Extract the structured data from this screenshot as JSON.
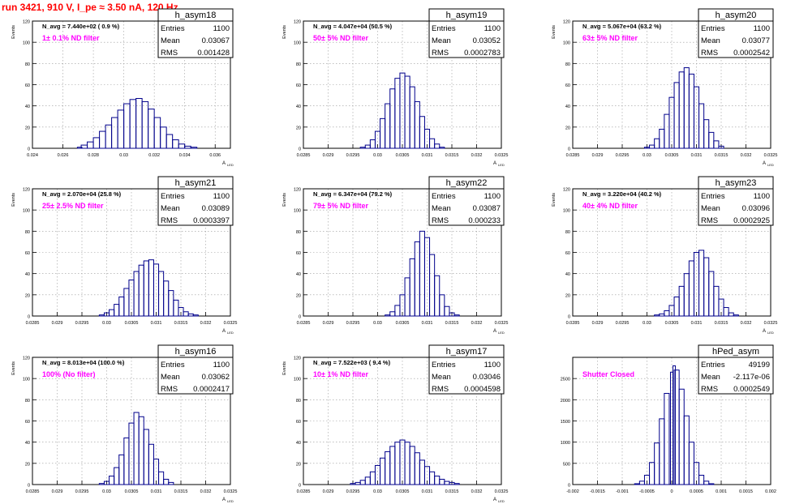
{
  "page": {
    "title": "run 3421,   910 V, I_pe ≈ 3.50 nA, 120 Hz"
  },
  "chart_data": [
    {
      "type": "histogram",
      "name": "h_asym18",
      "navg": "N_avg = 7.440e+02 ( 0.9 %)",
      "filter": "1± 0.1% ND filter",
      "stats": [
        [
          "Entries",
          "1100"
        ],
        [
          "Mean",
          "0.03067"
        ],
        [
          "RMS",
          "0.001428"
        ]
      ],
      "xlabel": "A",
      "xlabel_sub": "LED",
      "ylabel": "Events",
      "xlim": [
        0.024,
        0.037
      ],
      "ylim": [
        0,
        120
      ],
      "xticks": [
        0.024,
        0.026,
        0.028,
        0.03,
        0.032,
        0.034,
        0.036
      ],
      "xtick_labels": [
        "0.024",
        "0.026",
        "0.028",
        "0.03",
        "0.032",
        "0.034",
        "0.036"
      ],
      "yticks": [
        0,
        20,
        40,
        60,
        80,
        100,
        120
      ],
      "values": [
        [
          0.0271,
          1
        ],
        [
          0.0274,
          3
        ],
        [
          0.0278,
          6
        ],
        [
          0.0282,
          10
        ],
        [
          0.0286,
          16
        ],
        [
          0.029,
          22
        ],
        [
          0.0294,
          29
        ],
        [
          0.0298,
          36
        ],
        [
          0.0302,
          42
        ],
        [
          0.0306,
          46
        ],
        [
          0.031,
          47
        ],
        [
          0.0314,
          44
        ],
        [
          0.0318,
          37
        ],
        [
          0.0322,
          29
        ],
        [
          0.0326,
          20
        ],
        [
          0.033,
          13
        ],
        [
          0.0334,
          8
        ],
        [
          0.0338,
          4
        ],
        [
          0.0342,
          2
        ],
        [
          0.0346,
          1
        ]
      ]
    },
    {
      "type": "histogram",
      "name": "h_asym19",
      "navg": "N_avg = 4.047e+04 (50.5 %)",
      "filter": "50± 5% ND filter",
      "stats": [
        [
          "Entries",
          "1100"
        ],
        [
          "Mean",
          "0.03052"
        ],
        [
          "RMS",
          "0.0002783"
        ]
      ],
      "xlabel": "A",
      "xlabel_sub": "LED",
      "ylabel": "Events",
      "xlim": [
        0.0285,
        0.0325
      ],
      "ylim": [
        0,
        120
      ],
      "xticks": [
        0.0285,
        0.029,
        0.0295,
        0.03,
        0.0305,
        0.031,
        0.0315,
        0.032,
        0.0325
      ],
      "xtick_labels": [
        "0.0285",
        "0.029",
        "0.0295",
        "0.03",
        "0.0305",
        "0.031",
        "0.0315",
        "0.032",
        "0.0325"
      ],
      "yticks": [
        0,
        20,
        40,
        60,
        80,
        100,
        120
      ],
      "values": [
        [
          0.0297,
          1
        ],
        [
          0.0298,
          3
        ],
        [
          0.0299,
          8
        ],
        [
          0.03,
          16
        ],
        [
          0.0301,
          28
        ],
        [
          0.0302,
          42
        ],
        [
          0.0303,
          56
        ],
        [
          0.0304,
          66
        ],
        [
          0.0305,
          71
        ],
        [
          0.0306,
          68
        ],
        [
          0.0307,
          58
        ],
        [
          0.0308,
          44
        ],
        [
          0.0309,
          30
        ],
        [
          0.031,
          18
        ],
        [
          0.0311,
          9
        ],
        [
          0.0312,
          4
        ],
        [
          0.0313,
          1
        ]
      ]
    },
    {
      "type": "histogram",
      "name": "h_asym20",
      "navg": "N_avg = 5.067e+04 (63.2 %)",
      "filter": "63± 5% ND filter",
      "stats": [
        [
          "Entries",
          "1100"
        ],
        [
          "Mean",
          "0.03077"
        ],
        [
          "RMS",
          "0.0002542"
        ]
      ],
      "xlabel": "A",
      "xlabel_sub": "LED",
      "ylabel": "Events",
      "xlim": [
        0.0285,
        0.0325
      ],
      "ylim": [
        0,
        120
      ],
      "xticks": [
        0.0285,
        0.029,
        0.0295,
        0.03,
        0.0305,
        0.031,
        0.0315,
        0.032,
        0.0325
      ],
      "xtick_labels": [
        "0.0285",
        "0.029",
        "0.0295",
        "0.03",
        "0.0305",
        "0.031",
        "0.0315",
        "0.032",
        "0.0325"
      ],
      "yticks": [
        0,
        20,
        40,
        60,
        80,
        100,
        120
      ],
      "values": [
        [
          0.03,
          1
        ],
        [
          0.0301,
          3
        ],
        [
          0.0302,
          9
        ],
        [
          0.0303,
          18
        ],
        [
          0.0304,
          32
        ],
        [
          0.0305,
          48
        ],
        [
          0.0306,
          62
        ],
        [
          0.0307,
          72
        ],
        [
          0.0308,
          76
        ],
        [
          0.0309,
          70
        ],
        [
          0.031,
          58
        ],
        [
          0.0311,
          42
        ],
        [
          0.0312,
          27
        ],
        [
          0.0313,
          15
        ],
        [
          0.0314,
          7
        ],
        [
          0.0315,
          2
        ]
      ]
    },
    {
      "type": "histogram",
      "name": "h_asym21",
      "navg": "N_avg = 2.070e+04 (25.8 %)",
      "filter": "25± 2.5% ND filter",
      "stats": [
        [
          "Entries",
          "1100"
        ],
        [
          "Mean",
          "0.03089"
        ],
        [
          "RMS",
          "0.0003397"
        ]
      ],
      "xlabel": "A",
      "xlabel_sub": "LED",
      "ylabel": "Events",
      "xlim": [
        0.0285,
        0.0325
      ],
      "ylim": [
        0,
        120
      ],
      "xticks": [
        0.0285,
        0.029,
        0.0295,
        0.03,
        0.0305,
        0.031,
        0.0315,
        0.032,
        0.0325
      ],
      "xtick_labels": [
        "0.0285",
        "0.029",
        "0.0295",
        "0.03",
        "0.0305",
        "0.031",
        "0.0315",
        "0.032",
        "0.0325"
      ],
      "yticks": [
        0,
        20,
        40,
        60,
        80,
        100,
        120
      ],
      "values": [
        [
          0.0299,
          1
        ],
        [
          0.03,
          3
        ],
        [
          0.0301,
          6
        ],
        [
          0.0302,
          11
        ],
        [
          0.0303,
          18
        ],
        [
          0.0304,
          26
        ],
        [
          0.0305,
          34
        ],
        [
          0.0306,
          42
        ],
        [
          0.0307,
          48
        ],
        [
          0.0308,
          52
        ],
        [
          0.0309,
          53
        ],
        [
          0.031,
          49
        ],
        [
          0.0311,
          42
        ],
        [
          0.0312,
          33
        ],
        [
          0.0313,
          24
        ],
        [
          0.0314,
          15
        ],
        [
          0.0315,
          8
        ],
        [
          0.0316,
          4
        ],
        [
          0.0317,
          2
        ],
        [
          0.0318,
          1
        ]
      ]
    },
    {
      "type": "histogram",
      "name": "h_asym22",
      "navg": "N_avg = 6.347e+04 (79.2 %)",
      "filter": "79± 5% ND filter",
      "stats": [
        [
          "Entries",
          "1100"
        ],
        [
          "Mean",
          "0.03087"
        ],
        [
          "RMS",
          "0.000233"
        ]
      ],
      "xlabel": "A",
      "xlabel_sub": "LED",
      "ylabel": "Events",
      "xlim": [
        0.0285,
        0.0325
      ],
      "ylim": [
        0,
        120
      ],
      "xticks": [
        0.0285,
        0.029,
        0.0295,
        0.03,
        0.0305,
        0.031,
        0.0315,
        0.032,
        0.0325
      ],
      "xtick_labels": [
        "0.0285",
        "0.029",
        "0.0295",
        "0.03",
        "0.0305",
        "0.031",
        "0.0315",
        "0.032",
        "0.0325"
      ],
      "yticks": [
        0,
        20,
        40,
        60,
        80,
        100,
        120
      ],
      "values": [
        [
          0.0302,
          1
        ],
        [
          0.0303,
          4
        ],
        [
          0.0304,
          10
        ],
        [
          0.0305,
          20
        ],
        [
          0.0306,
          36
        ],
        [
          0.0307,
          54
        ],
        [
          0.0308,
          70
        ],
        [
          0.0309,
          80
        ],
        [
          0.031,
          74
        ],
        [
          0.0311,
          58
        ],
        [
          0.0312,
          38
        ],
        [
          0.0313,
          20
        ],
        [
          0.0314,
          9
        ],
        [
          0.0315,
          3
        ],
        [
          0.0316,
          1
        ]
      ]
    },
    {
      "type": "histogram",
      "name": "h_asym23",
      "navg": "N_avg = 3.220e+04 (40.2 %)",
      "filter": "40± 4% ND filter",
      "stats": [
        [
          "Entries",
          "1100"
        ],
        [
          "Mean",
          "0.03096"
        ],
        [
          "RMS",
          "0.0002925"
        ]
      ],
      "xlabel": "A",
      "xlabel_sub": "LED",
      "ylabel": "Events",
      "xlim": [
        0.0285,
        0.0325
      ],
      "ylim": [
        0,
        120
      ],
      "xticks": [
        0.0285,
        0.029,
        0.0295,
        0.03,
        0.0305,
        0.031,
        0.0315,
        0.032,
        0.0325
      ],
      "xtick_labels": [
        "0.0285",
        "0.029",
        "0.0295",
        "0.03",
        "0.0305",
        "0.031",
        "0.0315",
        "0.032",
        "0.0325"
      ],
      "yticks": [
        0,
        20,
        40,
        60,
        80,
        100,
        120
      ],
      "values": [
        [
          0.0302,
          1
        ],
        [
          0.0303,
          2
        ],
        [
          0.0304,
          5
        ],
        [
          0.0305,
          10
        ],
        [
          0.0306,
          18
        ],
        [
          0.0307,
          28
        ],
        [
          0.0308,
          40
        ],
        [
          0.0309,
          52
        ],
        [
          0.031,
          60
        ],
        [
          0.0311,
          62
        ],
        [
          0.0312,
          55
        ],
        [
          0.0313,
          42
        ],
        [
          0.0314,
          28
        ],
        [
          0.0315,
          16
        ],
        [
          0.0316,
          8
        ],
        [
          0.0317,
          3
        ],
        [
          0.0318,
          1
        ]
      ]
    },
    {
      "type": "histogram",
      "name": "h_asym16",
      "navg": "N_avg = 8.013e+04 (100.0 %)",
      "filter": "100% (No filter)",
      "stats": [
        [
          "Entries",
          "1100"
        ],
        [
          "Mean",
          "0.03062"
        ],
        [
          "RMS",
          "0.0002417"
        ]
      ],
      "xlabel": "A",
      "xlabel_sub": "LED",
      "ylabel": "Events",
      "xlim": [
        0.0285,
        0.0325
      ],
      "ylim": [
        0,
        120
      ],
      "xticks": [
        0.0285,
        0.029,
        0.0295,
        0.03,
        0.0305,
        0.031,
        0.0315,
        0.032,
        0.0325
      ],
      "xtick_labels": [
        "0.0285",
        "0.029",
        "0.0295",
        "0.03",
        "0.0305",
        "0.031",
        "0.0315",
        "0.032",
        "0.0325"
      ],
      "yticks": [
        0,
        20,
        40,
        60,
        80,
        100,
        120
      ],
      "values": [
        [
          0.0299,
          1
        ],
        [
          0.03,
          3
        ],
        [
          0.0301,
          8
        ],
        [
          0.0302,
          16
        ],
        [
          0.0303,
          28
        ],
        [
          0.0304,
          44
        ],
        [
          0.0305,
          58
        ],
        [
          0.0306,
          68
        ],
        [
          0.0307,
          64
        ],
        [
          0.0308,
          52
        ],
        [
          0.0309,
          38
        ],
        [
          0.031,
          24
        ],
        [
          0.0311,
          12
        ],
        [
          0.0312,
          5
        ],
        [
          0.0313,
          2
        ]
      ]
    },
    {
      "type": "histogram",
      "name": "h_asym17",
      "navg": "N_avg = 7.522e+03 ( 9.4 %)",
      "filter": "10± 1% ND filter",
      "stats": [
        [
          "Entries",
          "1100"
        ],
        [
          "Mean",
          "0.03046"
        ],
        [
          "RMS",
          "0.0004598"
        ]
      ],
      "xlabel": "A",
      "xlabel_sub": "LED",
      "ylabel": "Events",
      "xlim": [
        0.0285,
        0.0325
      ],
      "ylim": [
        0,
        120
      ],
      "xticks": [
        0.0285,
        0.029,
        0.0295,
        0.03,
        0.0305,
        0.031,
        0.0315,
        0.032,
        0.0325
      ],
      "xtick_labels": [
        "0.0285",
        "0.029",
        "0.0295",
        "0.03",
        "0.0305",
        "0.031",
        "0.0315",
        "0.032",
        "0.0325"
      ],
      "yticks": [
        0,
        20,
        40,
        60,
        80,
        100,
        120
      ],
      "values": [
        [
          0.0295,
          1
        ],
        [
          0.0296,
          2
        ],
        [
          0.0297,
          4
        ],
        [
          0.0298,
          7
        ],
        [
          0.0299,
          12
        ],
        [
          0.03,
          18
        ],
        [
          0.0301,
          25
        ],
        [
          0.0302,
          31
        ],
        [
          0.0303,
          36
        ],
        [
          0.0304,
          40
        ],
        [
          0.0305,
          42
        ],
        [
          0.0306,
          40
        ],
        [
          0.0307,
          36
        ],
        [
          0.0308,
          30
        ],
        [
          0.0309,
          23
        ],
        [
          0.031,
          17
        ],
        [
          0.0311,
          12
        ],
        [
          0.0312,
          8
        ],
        [
          0.0313,
          5
        ],
        [
          0.0314,
          3
        ],
        [
          0.0315,
          2
        ],
        [
          0.0316,
          1
        ]
      ]
    },
    {
      "type": "histogram",
      "name": "hPed_asym",
      "navg": "",
      "filter": "Shutter Closed",
      "stats": [
        [
          "Entries",
          "49199"
        ],
        [
          "Mean",
          "-2.117e-06"
        ],
        [
          "RMS",
          "0.0002549"
        ]
      ],
      "xlabel": "",
      "xlabel_sub": "",
      "ylabel": "",
      "xlim": [
        -0.002,
        0.002
      ],
      "ylim": [
        0,
        3000
      ],
      "xticks": [
        -0.002,
        -0.0015,
        -0.001,
        -0.0005,
        0,
        0.0005,
        0.001,
        0.0015,
        0.002
      ],
      "xtick_labels": [
        "-0.002",
        "-0.0015",
        "-0.001",
        "-0.0005",
        "0",
        "0.0005",
        "0.001",
        "0.0015",
        "0.002"
      ],
      "yticks": [
        0,
        500,
        1000,
        1500,
        2000,
        2500
      ],
      "values": [
        [
          -0.0007,
          20
        ],
        [
          -0.0006,
          80
        ],
        [
          -0.0005,
          220
        ],
        [
          -0.0004,
          520
        ],
        [
          -0.0003,
          980
        ],
        [
          -0.0002,
          1550
        ],
        [
          -0.0001,
          2150
        ],
        [
          0,
          2650
        ],
        [
          5e-05,
          2800
        ],
        [
          0.0001,
          2700
        ],
        [
          0.0002,
          2250
        ],
        [
          0.0003,
          1620
        ],
        [
          0.0004,
          1000
        ],
        [
          0.0005,
          520
        ],
        [
          0.0006,
          220
        ],
        [
          0.0007,
          80
        ],
        [
          0.0008,
          20
        ]
      ]
    }
  ]
}
